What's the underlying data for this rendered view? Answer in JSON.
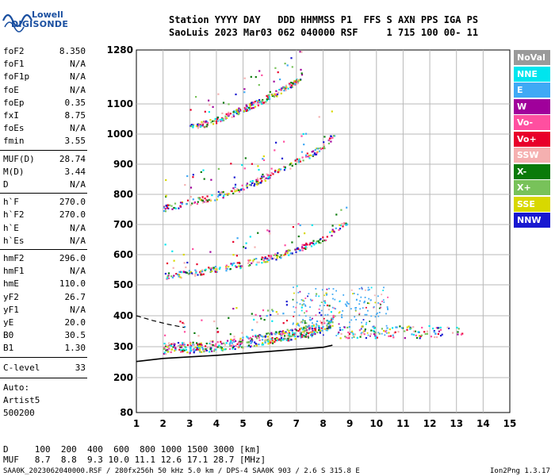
{
  "logo": {
    "line1": "Lowell",
    "line2": "DIGISONDE",
    "wave_color": "#1a4fa0"
  },
  "header": {
    "line1": "Station YYYY DAY   DDD HHMMSS P1  FFS S AXN PPS IGA PS",
    "line2": "SaoLuis 2023 Mar03 062 040000 RSF     1 715 100 00- 11"
  },
  "params_group1": [
    {
      "label": "foF2",
      "value": "8.350"
    },
    {
      "label": "foF1",
      "value": "N/A"
    },
    {
      "label": "foF1p",
      "value": "N/A"
    },
    {
      "label": "foE",
      "value": "N/A"
    },
    {
      "label": "foEp",
      "value": "0.35"
    },
    {
      "label": "fxI",
      "value": "8.75"
    },
    {
      "label": "foEs",
      "value": "N/A"
    },
    {
      "label": "fmin",
      "value": "3.55"
    }
  ],
  "params_group2": [
    {
      "label": "MUF(D)",
      "value": "28.74"
    },
    {
      "label": "M(D)",
      "value": "3.44"
    },
    {
      "label": "D",
      "value": "N/A"
    }
  ],
  "params_group3": [
    {
      "label": "h`F",
      "value": "270.0"
    },
    {
      "label": "h`F2",
      "value": "270.0"
    },
    {
      "label": "h`E",
      "value": "N/A"
    },
    {
      "label": "h`Es",
      "value": "N/A"
    }
  ],
  "params_group4": [
    {
      "label": "hmF2",
      "value": "296.0"
    },
    {
      "label": "hmF1",
      "value": "N/A"
    },
    {
      "label": "hmE",
      "value": "110.0"
    },
    {
      "label": "yF2",
      "value": "26.7"
    },
    {
      "label": "yF1",
      "value": "N/A"
    },
    {
      "label": "yE",
      "value": "20.0"
    },
    {
      "label": "B0",
      "value": "30.5"
    },
    {
      "label": "B1",
      "value": "1.30"
    }
  ],
  "clevel": {
    "label": "C-level",
    "value": "33"
  },
  "auto": {
    "line1": "Auto:",
    "line2": "Artist5",
    "line3": "500200"
  },
  "legend": [
    {
      "label": "NoVal",
      "bg": "#9a9a9a",
      "fg": "#ffffff"
    },
    {
      "label": "NNE",
      "bg": "#00e5ee",
      "fg": "#ffffff"
    },
    {
      "label": "E",
      "bg": "#3fa9f5",
      "fg": "#ffffff"
    },
    {
      "label": "W",
      "bg": "#a0009b",
      "fg": "#ffffff"
    },
    {
      "label": "Vo-",
      "bg": "#ff4fa0",
      "fg": "#ffffff"
    },
    {
      "label": "Vo+",
      "bg": "#e8002a",
      "fg": "#ffffff"
    },
    {
      "label": "SSW",
      "bg": "#f5b0b0",
      "fg": "#ffffff"
    },
    {
      "label": "X-",
      "bg": "#0a7a0a",
      "fg": "#ffffff"
    },
    {
      "label": "X+",
      "bg": "#78c25a",
      "fg": "#ffffff"
    },
    {
      "label": "SSE",
      "bg": "#d8d800",
      "fg": "#ffffff"
    },
    {
      "label": "NNW",
      "bg": "#1818d0",
      "fg": "#ffffff"
    }
  ],
  "muf_table": {
    "d_row": "D     100  200  400  600  800 1000 1500 3000 [km]",
    "muf_row": "MUF   8.7  8.8  9.3 10.0 11.1 12.6 17.1 28.7 [MHz]"
  },
  "footer": {
    "left": "SAA0K_2023062040000.RSF / 280fx256h 50 kHz 5.0 km / DPS-4 SAA0K 903 / 2.6 S 315.8 E",
    "right": "Ion2Png 1.3.17"
  },
  "chart_data": {
    "type": "scatter",
    "x_ticks": [
      "1",
      "2",
      "3",
      "4",
      "5",
      "6",
      "7",
      "8",
      "9",
      "10",
      "11",
      "12",
      "13",
      "14",
      "15"
    ],
    "y_ticks": [
      "80",
      "200",
      "300",
      "400",
      "500",
      "600",
      "700",
      "800",
      "900",
      "1000",
      "1100",
      "1280"
    ],
    "xlim": [
      1,
      15
    ],
    "ylim": [
      80,
      1280
    ],
    "y_scale": "nonlinear-virtual-height",
    "grid": true,
    "legend_position": "right",
    "traces": [
      {
        "name": "F2 1st hop",
        "x": [
          2.0,
          3.0,
          4.0,
          5.0,
          6.0,
          7.0,
          8.0,
          8.4
        ],
        "y": [
          295,
          300,
          305,
          315,
          330,
          345,
          365,
          390
        ]
      },
      {
        "name": "F2 2nd hop",
        "x": [
          2.0,
          3.0,
          4.0,
          5.0,
          6.0,
          7.0,
          8.0,
          8.9
        ],
        "y": [
          530,
          540,
          555,
          570,
          590,
          620,
          655,
          710
        ]
      },
      {
        "name": "F2 3rd hop",
        "x": [
          2.0,
          3.0,
          4.0,
          5.0,
          6.0,
          7.0,
          8.0,
          8.4
        ],
        "y": [
          755,
          775,
          795,
          825,
          865,
          910,
          960,
          1000
        ]
      },
      {
        "name": "F2 4th hop",
        "x": [
          3.0,
          4.0,
          5.0,
          6.0,
          7.0,
          7.2
        ],
        "y": [
          1020,
          1050,
          1085,
          1125,
          1180,
          1200
        ]
      }
    ],
    "fitted_profile": {
      "x": [
        1.0,
        2.0,
        4.0,
        6.0,
        8.0,
        8.35
      ],
      "y": [
        252,
        262,
        272,
        285,
        298,
        305
      ]
    },
    "dashed_curve": {
      "x": [
        1.0,
        1.6,
        2.2,
        2.8
      ],
      "y": [
        400,
        385,
        372,
        362
      ]
    }
  }
}
